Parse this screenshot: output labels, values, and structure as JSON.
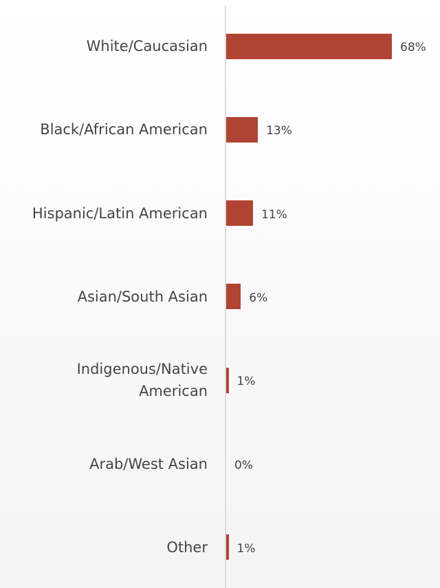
{
  "chart_data": {
    "type": "bar",
    "orientation": "horizontal",
    "categories": [
      "White/Caucasian",
      "Black/African American",
      "Hispanic/Latin American",
      "Asian/South Asian",
      "Indigenous/Native American",
      "Arab/West Asian",
      "Other"
    ],
    "values": [
      68,
      13,
      11,
      6,
      1,
      0,
      1
    ],
    "value_labels": [
      "68%",
      "13%",
      "11%",
      "6%",
      "1%",
      "0%",
      "1%"
    ],
    "color": "#b04434"
  }
}
